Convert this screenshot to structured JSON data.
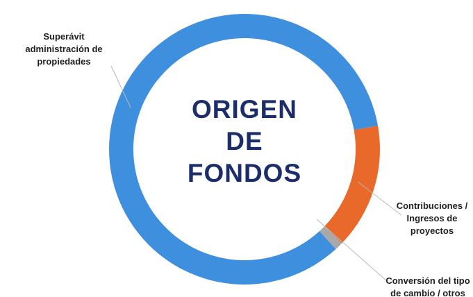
{
  "chart_data": {
    "type": "donut",
    "title": "ORIGEN DE FONDOS",
    "categories": [
      "Contribuciones / Ingresos de proyectos",
      "Conversión del tipo de cambio / otros",
      "Superávit administración de propiedades"
    ],
    "values": [
      15,
      1,
      84
    ],
    "colors": [
      "#e8692a",
      "#a9a9a9",
      "#3f8fdf"
    ]
  }
}
